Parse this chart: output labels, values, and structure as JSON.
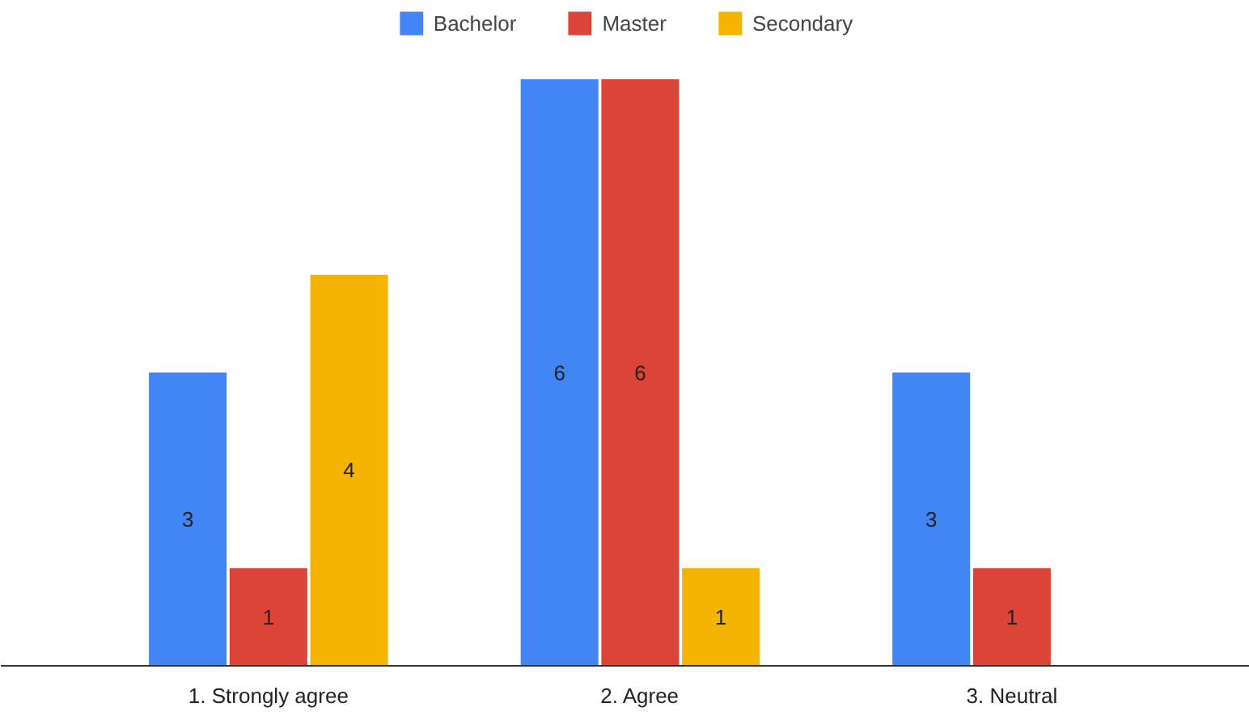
{
  "chart_data": {
    "type": "bar",
    "categories": [
      "1. Strongly agree",
      "2. Agree",
      "3. Neutral"
    ],
    "series": [
      {
        "name": "Bachelor",
        "color": "#4285f4",
        "values": [
          3,
          6,
          3
        ]
      },
      {
        "name": "Master",
        "color": "#db4437",
        "values": [
          1,
          6,
          1
        ]
      },
      {
        "name": "Secondary",
        "color": "#f4b400",
        "values": [
          4,
          1,
          null
        ]
      }
    ],
    "data_labels": true,
    "legend": "top"
  }
}
